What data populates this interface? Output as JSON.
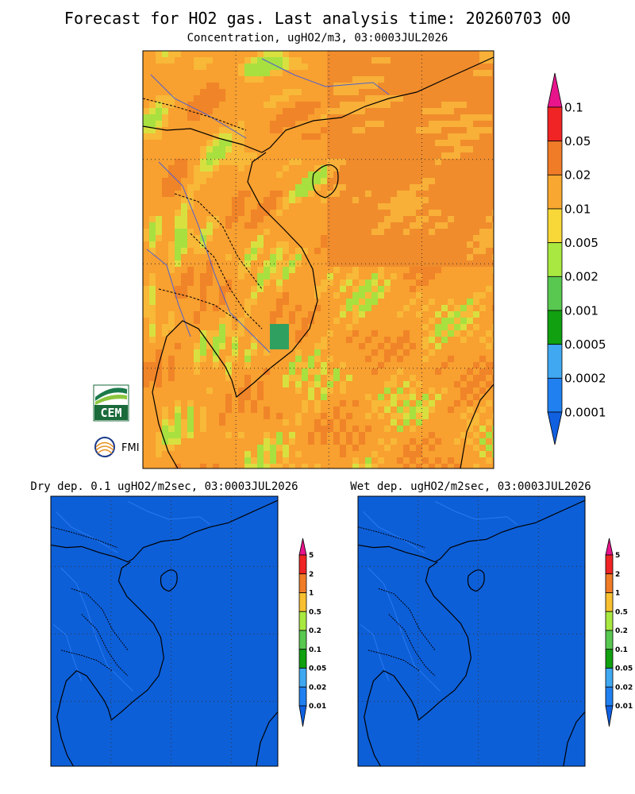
{
  "header": {
    "title": "Forecast for HO2 gas. Last analysis time: 20260703 00",
    "subtitle": "Concentration, ugHO2/m3, 03:0003JUL2026"
  },
  "main_legend": {
    "labels": [
      "0.1",
      "0.05",
      "0.02",
      "0.01",
      "0.005",
      "0.002",
      "0.001",
      "0.0005",
      "0.0002",
      "0.0001"
    ],
    "colors": [
      "#e8148c",
      "#f02424",
      "#f07c28",
      "#f8a830",
      "#f8d838",
      "#a8e840",
      "#58c850",
      "#10a010",
      "#40a8f0",
      "#2080f0",
      "#1060e0"
    ]
  },
  "panels": [
    {
      "title": "Dry dep. 0.1 ugHO2/m2sec, 03:0003JUL2026"
    },
    {
      "title": "Wet dep. ugHO2/m2sec, 03:0003JUL2026"
    }
  ],
  "small_legend": {
    "labels": [
      "5",
      "2",
      "1",
      "0.5",
      "0.2",
      "0.1",
      "0.05",
      "0.02",
      "0.01"
    ],
    "colors": [
      "#e8148c",
      "#f02424",
      "#f07c28",
      "#f8c030",
      "#a8e840",
      "#58c850",
      "#10a010",
      "#40a8f0",
      "#2080f0",
      "#1060e0"
    ]
  },
  "logos": {
    "cem": "CEM",
    "fmi": "FMI"
  }
}
